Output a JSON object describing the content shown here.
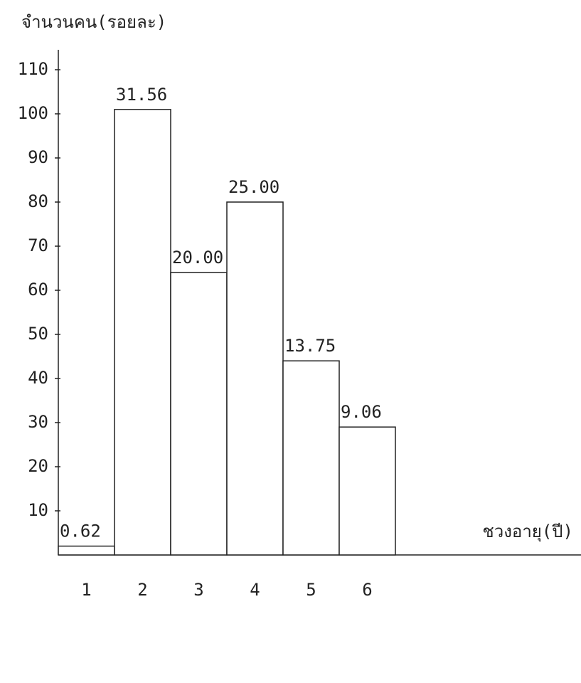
{
  "chart_data": {
    "type": "bar",
    "y_axis_label": "จำนวนคน(รอยละ)",
    "x_axis_label": "ชวงอายุ(ปี)",
    "categories": [
      "1",
      "2",
      "3",
      "4",
      "5",
      "6"
    ],
    "values": [
      2,
      101,
      64,
      80,
      44,
      29
    ],
    "annotations": [
      "0.62",
      "31.56",
      "20.00",
      "25.00",
      "13.75",
      "9.06"
    ],
    "color": "#ffffff",
    "ylim": [
      0,
      110
    ],
    "yticks": [
      10,
      20,
      30,
      40,
      50,
      60,
      70,
      80,
      90,
      100,
      110
    ],
    "grid": false
  }
}
